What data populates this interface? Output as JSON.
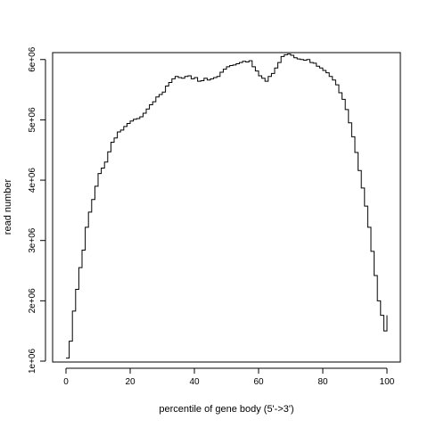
{
  "chart_data": {
    "type": "line",
    "style": "step",
    "title": "",
    "xlabel": "percentile of gene body (5'->3')",
    "ylabel": "read number",
    "xlim": [
      0,
      100
    ],
    "ylim": [
      1000000,
      6100000
    ],
    "xticks": [
      0,
      20,
      40,
      60,
      80,
      100
    ],
    "xtick_labels": [
      "0",
      "20",
      "40",
      "60",
      "80",
      "100"
    ],
    "yticks": [
      1000000,
      2000000,
      3000000,
      4000000,
      5000000,
      6000000
    ],
    "ytick_labels": [
      "1e+06",
      "2e+06",
      "3e+06",
      "4e+06",
      "5e+06",
      "6e+06"
    ],
    "grid": false,
    "series": [
      {
        "x": [
          0,
          1,
          2,
          3,
          4,
          5,
          6,
          7,
          8,
          9,
          10,
          11,
          12,
          13,
          14,
          15,
          16,
          17,
          18,
          19,
          20,
          21,
          22,
          23,
          24,
          25,
          26,
          27,
          28,
          29,
          30,
          31,
          32,
          33,
          34,
          35,
          36,
          37,
          38,
          39,
          40,
          41,
          42,
          43,
          44,
          45,
          46,
          47,
          48,
          49,
          50,
          51,
          52,
          53,
          54,
          55,
          56,
          57,
          58,
          59,
          60,
          61,
          62,
          63,
          64,
          65,
          66,
          67,
          68,
          69,
          70,
          71,
          72,
          73,
          74,
          75,
          76,
          77,
          78,
          79,
          80,
          81,
          82,
          83,
          84,
          85,
          86,
          87,
          88,
          89,
          90,
          91,
          92,
          93,
          94,
          95,
          96,
          97,
          98,
          99,
          100
        ],
        "values": [
          1050000,
          1330000,
          1830000,
          2190000,
          2550000,
          2840000,
          3220000,
          3470000,
          3680000,
          3900000,
          4110000,
          4200000,
          4300000,
          4470000,
          4630000,
          4700000,
          4800000,
          4830000,
          4890000,
          4940000,
          4980000,
          5010000,
          5020000,
          5050000,
          5110000,
          5180000,
          5250000,
          5300000,
          5380000,
          5420000,
          5460000,
          5560000,
          5620000,
          5680000,
          5720000,
          5700000,
          5690000,
          5720000,
          5730000,
          5680000,
          5700000,
          5640000,
          5650000,
          5690000,
          5660000,
          5680000,
          5700000,
          5720000,
          5790000,
          5840000,
          5880000,
          5900000,
          5910000,
          5930000,
          5950000,
          5970000,
          5960000,
          5980000,
          5880000,
          5810000,
          5730000,
          5690000,
          5640000,
          5720000,
          5770000,
          5860000,
          5950000,
          6050000,
          6080000,
          6090000,
          6070000,
          6030000,
          6010000,
          6000000,
          5990000,
          6000000,
          5950000,
          5940000,
          5890000,
          5860000,
          5820000,
          5780000,
          5720000,
          5660000,
          5580000,
          5450000,
          5340000,
          5170000,
          4950000,
          4720000,
          4460000,
          4160000,
          3870000,
          3570000,
          3220000,
          2820000,
          2420000,
          2000000,
          1760000,
          1500000,
          1760000
        ]
      }
    ]
  }
}
